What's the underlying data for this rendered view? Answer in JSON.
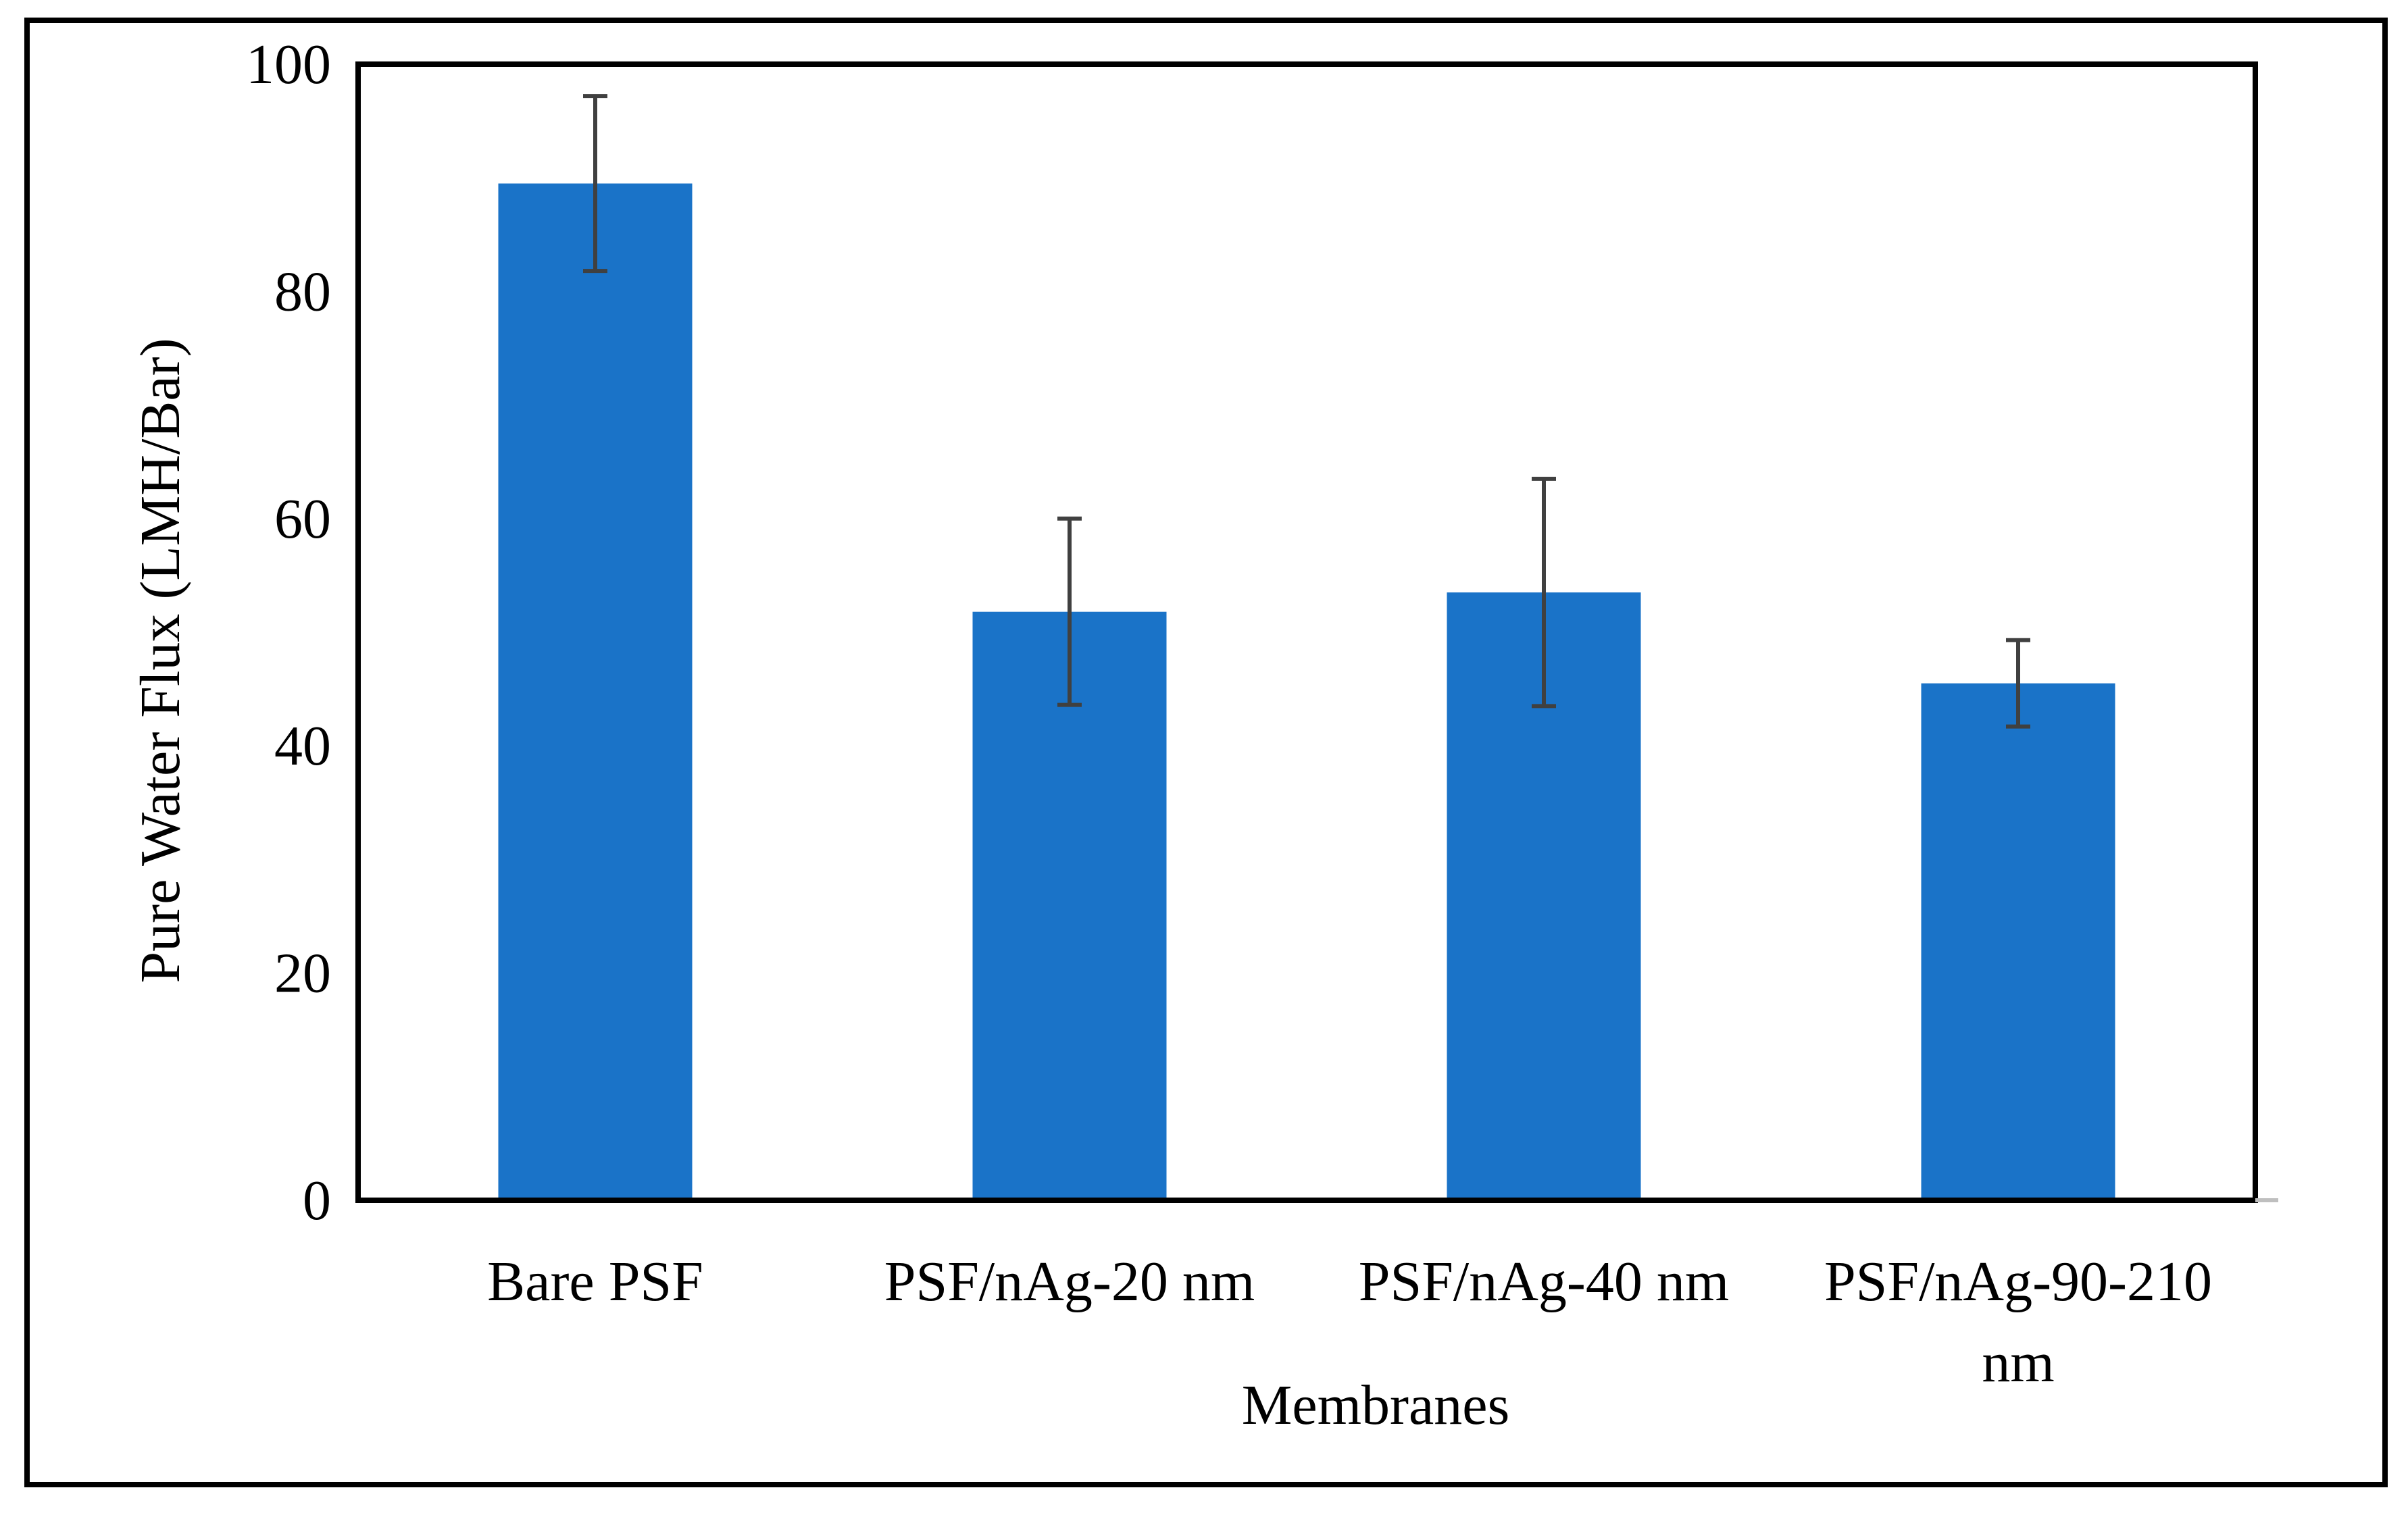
{
  "chart_data": {
    "type": "bar",
    "title": "",
    "xlabel": "Membranes",
    "ylabel": "Pure Water Flux (LMH/Bar)",
    "categories": [
      [
        "Bare PSF"
      ],
      [
        "PSF/nAg-20 nm"
      ],
      [
        "PSF/nAg-40 nm"
      ],
      [
        "PSF/nAg-90-210",
        "nm"
      ]
    ],
    "series": [
      {
        "name": "Pure Water Flux",
        "values": [
          89.5,
          51.8,
          53.5,
          45.5
        ],
        "error": [
          7.7,
          8.2,
          10.0,
          3.8
        ]
      }
    ],
    "ylim": [
      0,
      100
    ],
    "yticks": [
      0,
      20,
      40,
      60,
      80,
      100
    ],
    "grid": false,
    "legend": "none",
    "colors": {
      "bar": "#1a73c8",
      "error_bar": "#404040",
      "frame": "#000000"
    }
  }
}
